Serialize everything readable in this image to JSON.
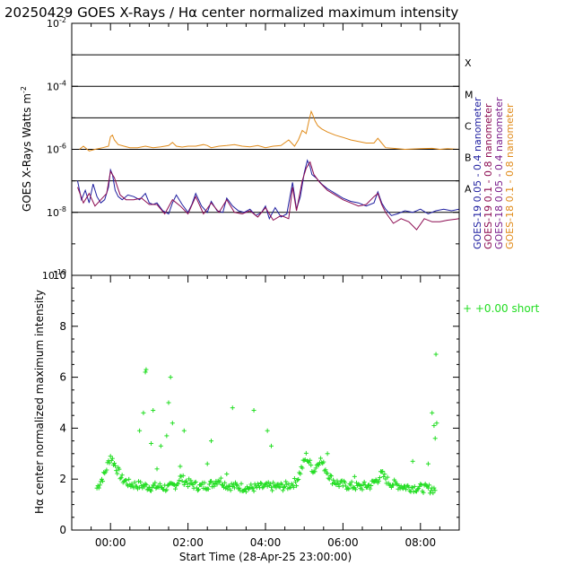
{
  "figure_title": "20250429 GOES X-Rays / Hα center normalized maximum intensity",
  "x_axis_label": "Start Time (28-Apr-25 23:00:00)",
  "colors": {
    "goes19_short": "#1e1ea0",
    "goes19_long": "#8b0a50",
    "goes18_short": "#7a1e8c",
    "goes18_long": "#e08a18",
    "halpha": "#22dd22",
    "frame": "#000000"
  },
  "chart_data": [
    {
      "type": "line",
      "title": "GOES X-Rays",
      "ylabel": "GOES X-Rays Watts m",
      "ylabel_sup": "-2",
      "yscale": "log",
      "ylim_exp": [
        -10,
        -2
      ],
      "xlim_hours": [
        -1.0,
        9.0
      ],
      "y_ticks": [
        {
          "exp": -2,
          "base": "10",
          "sup": "-2"
        },
        {
          "exp": -4,
          "base": "10",
          "sup": "-4"
        },
        {
          "exp": -6,
          "base": "10",
          "sup": "-6"
        },
        {
          "exp": -8,
          "base": "10",
          "sup": "-8"
        },
        {
          "exp": -10,
          "base": "10",
          "sup": "-10"
        }
      ],
      "flare_class_lines": [
        {
          "label": "X",
          "exp": -3
        },
        {
          "label": "M",
          "exp": -4
        },
        {
          "label": "C",
          "exp": -5
        },
        {
          "label": "B",
          "exp": -6
        },
        {
          "label": "A",
          "exp": -7
        },
        {
          "label": "",
          "exp": -8
        }
      ],
      "legend": [
        {
          "text": "GOES-19 0.05 - 0.4 nanometer",
          "color_key": "goes19_short"
        },
        {
          "text": "GOES-19 0.1 - 0.8 nanometer",
          "color_key": "goes19_long"
        },
        {
          "text": "GOES-18 0.05 - 0.4 nanometer",
          "color_key": "goes18_short"
        },
        {
          "text": "GOES-18 0.1 - 0.8 nanometer",
          "color_key": "goes18_long"
        }
      ],
      "series": [
        {
          "name": "GOES-18 0.1 - 0.8 nanometer",
          "color_key": "goes18_long",
          "x": [
            -0.8,
            -0.7,
            -0.55,
            -0.4,
            -0.2,
            -0.05,
            0.0,
            0.05,
            0.1,
            0.2,
            0.35,
            0.5,
            0.7,
            0.9,
            1.1,
            1.3,
            1.5,
            1.6,
            1.7,
            1.85,
            2.0,
            2.2,
            2.4,
            2.5,
            2.6,
            2.8,
            3.0,
            3.2,
            3.4,
            3.6,
            3.8,
            4.0,
            4.2,
            4.4,
            4.6,
            4.75,
            4.85,
            4.95,
            5.05,
            5.12,
            5.18,
            5.22,
            5.28,
            5.35,
            5.45,
            5.6,
            5.8,
            6.0,
            6.2,
            6.4,
            6.6,
            6.8,
            6.9,
            7.0,
            7.1,
            7.3,
            7.6,
            8.0,
            8.3,
            8.5,
            8.7,
            9.0
          ],
          "values_log": [
            -6.0,
            -5.9,
            -6.05,
            -6.0,
            -5.95,
            -5.9,
            -5.6,
            -5.55,
            -5.7,
            -5.85,
            -5.9,
            -5.95,
            -5.95,
            -5.9,
            -5.95,
            -5.92,
            -5.88,
            -5.78,
            -5.9,
            -5.93,
            -5.9,
            -5.9,
            -5.85,
            -5.88,
            -5.95,
            -5.9,
            -5.88,
            -5.85,
            -5.9,
            -5.92,
            -5.88,
            -5.95,
            -5.9,
            -5.88,
            -5.7,
            -5.9,
            -5.7,
            -5.4,
            -5.5,
            -5.1,
            -4.8,
            -4.9,
            -5.1,
            -5.25,
            -5.35,
            -5.45,
            -5.55,
            -5.62,
            -5.7,
            -5.75,
            -5.8,
            -5.8,
            -5.65,
            -5.8,
            -5.95,
            -5.97,
            -6.0,
            -5.98,
            -5.97,
            -6.0,
            -5.98,
            -6.0
          ]
        },
        {
          "name": "GOES-19 0.05 - 0.4 nanometer",
          "color_key": "goes19_short",
          "x": [
            -0.85,
            -0.75,
            -0.65,
            -0.55,
            -0.45,
            -0.35,
            -0.25,
            -0.15,
            -0.05,
            0.0,
            0.05,
            0.12,
            0.2,
            0.3,
            0.45,
            0.6,
            0.75,
            0.9,
            1.0,
            1.1,
            1.2,
            1.35,
            1.5,
            1.6,
            1.7,
            1.85,
            2.0,
            2.1,
            2.2,
            2.35,
            2.5,
            2.6,
            2.75,
            2.9,
            3.0,
            3.15,
            3.3,
            3.45,
            3.6,
            3.75,
            3.9,
            4.0,
            4.1,
            4.25,
            4.4,
            4.55,
            4.7,
            4.8,
            4.9,
            5.0,
            5.08,
            5.15,
            5.2,
            5.3,
            5.45,
            5.6,
            5.8,
            6.0,
            6.2,
            6.4,
            6.6,
            6.8,
            6.9,
            7.0,
            7.1,
            7.25,
            7.4,
            7.6,
            7.8,
            8.0,
            8.2,
            8.4,
            8.6,
            8.8,
            9.0
          ],
          "values_log": [
            -7.0,
            -7.6,
            -7.3,
            -7.7,
            -7.1,
            -7.5,
            -7.7,
            -7.6,
            -7.2,
            -6.65,
            -6.8,
            -7.3,
            -7.5,
            -7.6,
            -7.45,
            -7.5,
            -7.6,
            -7.4,
            -7.7,
            -7.75,
            -7.7,
            -7.95,
            -8.05,
            -7.7,
            -7.45,
            -7.75,
            -8.0,
            -7.75,
            -7.4,
            -7.8,
            -8.0,
            -7.65,
            -7.95,
            -8.0,
            -7.55,
            -7.8,
            -7.95,
            -8.0,
            -7.9,
            -8.1,
            -8.0,
            -7.8,
            -8.2,
            -7.85,
            -8.15,
            -8.05,
            -7.05,
            -7.9,
            -7.5,
            -6.75,
            -6.35,
            -6.55,
            -6.8,
            -6.9,
            -7.1,
            -7.25,
            -7.4,
            -7.55,
            -7.65,
            -7.7,
            -7.8,
            -7.7,
            -7.35,
            -7.7,
            -7.9,
            -8.1,
            -8.05,
            -7.95,
            -8.0,
            -7.9,
            -8.05,
            -7.95,
            -7.9,
            -7.95,
            -7.9
          ]
        },
        {
          "name": "GOES-19 0.1 - 0.8 nanometer",
          "color_key": "goes19_long",
          "x": [
            -0.85,
            -0.7,
            -0.55,
            -0.4,
            -0.25,
            -0.1,
            0.0,
            0.1,
            0.25,
            0.4,
            0.6,
            0.8,
            1.0,
            1.2,
            1.4,
            1.6,
            1.8,
            2.0,
            2.2,
            2.4,
            2.6,
            2.8,
            3.0,
            3.2,
            3.4,
            3.6,
            3.8,
            4.0,
            4.2,
            4.4,
            4.6,
            4.7,
            4.8,
            4.95,
            5.05,
            5.15,
            5.25,
            5.4,
            5.6,
            5.8,
            6.0,
            6.2,
            6.4,
            6.6,
            6.8,
            6.9,
            7.0,
            7.1,
            7.3,
            7.5,
            7.7,
            7.9,
            8.1,
            8.3,
            8.5,
            8.7,
            9.0
          ],
          "values_log": [
            -7.2,
            -7.7,
            -7.4,
            -7.8,
            -7.6,
            -7.4,
            -6.7,
            -6.9,
            -7.45,
            -7.6,
            -7.6,
            -7.55,
            -7.75,
            -7.75,
            -8.05,
            -7.6,
            -7.8,
            -8.05,
            -7.5,
            -8.05,
            -7.7,
            -8.0,
            -7.6,
            -8.0,
            -8.05,
            -7.95,
            -8.15,
            -7.85,
            -8.25,
            -8.1,
            -8.2,
            -7.2,
            -7.95,
            -7.0,
            -6.6,
            -6.4,
            -6.8,
            -7.05,
            -7.3,
            -7.45,
            -7.6,
            -7.7,
            -7.8,
            -7.75,
            -7.5,
            -7.4,
            -7.75,
            -8.0,
            -8.35,
            -8.2,
            -8.3,
            -8.55,
            -8.2,
            -8.3,
            -8.3,
            -8.25,
            -8.2
          ]
        }
      ]
    },
    {
      "type": "scatter",
      "title": "Hα center normalized maximum intensity",
      "ylabel": "Hα center normalized maximum intensity",
      "ylim": [
        0,
        10
      ],
      "xlim_hours": [
        -1.0,
        9.0
      ],
      "y_ticks": [
        0,
        2,
        4,
        6,
        8,
        10
      ],
      "x_ticks": [
        {
          "hour": 0,
          "label": "00:00"
        },
        {
          "hour": 2,
          "label": "02:00"
        },
        {
          "hour": 4,
          "label": "04:00"
        },
        {
          "hour": 6,
          "label": "06:00"
        },
        {
          "hour": 8,
          "label": "08:00"
        }
      ],
      "legend": [
        {
          "marker": "+",
          "text": "+0.00 short"
        }
      ],
      "baseline_knots_x": [
        -0.35,
        -0.15,
        0.0,
        0.1,
        0.3,
        0.5,
        0.8,
        1.0,
        1.3,
        1.5,
        1.7,
        1.8,
        2.0,
        2.3,
        2.6,
        2.8,
        3.0,
        3.3,
        3.6,
        4.0,
        4.4,
        4.6,
        4.8,
        4.95,
        5.05,
        5.15,
        5.25,
        5.4,
        5.55,
        5.7,
        5.9,
        6.1,
        6.4,
        6.7,
        6.9,
        7.0,
        7.2,
        7.6,
        8.0,
        8.4
      ],
      "baseline_knots_y": [
        1.65,
        2.2,
        2.9,
        2.6,
        2.0,
        1.8,
        1.75,
        1.7,
        1.7,
        1.65,
        1.8,
        2.05,
        1.85,
        1.7,
        1.8,
        2.0,
        1.75,
        1.7,
        1.65,
        1.7,
        1.7,
        1.75,
        1.9,
        2.5,
        2.9,
        2.6,
        2.3,
        2.8,
        2.4,
        2.0,
        1.8,
        1.75,
        1.7,
        1.75,
        2.0,
        2.2,
        1.85,
        1.7,
        1.65,
        1.6
      ],
      "outliers": [
        {
          "x": 0.9,
          "y": 6.2
        },
        {
          "x": 0.92,
          "y": 6.3
        },
        {
          "x": 1.55,
          "y": 6.0
        },
        {
          "x": 0.85,
          "y": 4.6
        },
        {
          "x": 1.1,
          "y": 4.7
        },
        {
          "x": 1.5,
          "y": 5.0
        },
        {
          "x": 1.6,
          "y": 4.2
        },
        {
          "x": 0.75,
          "y": 3.9
        },
        {
          "x": 1.05,
          "y": 3.4
        },
        {
          "x": 1.3,
          "y": 3.3
        },
        {
          "x": 1.45,
          "y": 3.7
        },
        {
          "x": 1.9,
          "y": 3.9
        },
        {
          "x": 2.6,
          "y": 3.5
        },
        {
          "x": 3.15,
          "y": 4.8
        },
        {
          "x": 3.7,
          "y": 4.7
        },
        {
          "x": 4.05,
          "y": 3.9
        },
        {
          "x": 4.15,
          "y": 3.3
        },
        {
          "x": 2.5,
          "y": 2.6
        },
        {
          "x": 3.0,
          "y": 2.2
        },
        {
          "x": 1.8,
          "y": 2.5
        },
        {
          "x": 1.2,
          "y": 2.4
        },
        {
          "x": 8.3,
          "y": 4.6
        },
        {
          "x": 8.35,
          "y": 4.1
        },
        {
          "x": 8.4,
          "y": 6.9
        },
        {
          "x": 8.42,
          "y": 4.2
        },
        {
          "x": 8.38,
          "y": 3.6
        },
        {
          "x": 8.2,
          "y": 2.6
        },
        {
          "x": 7.8,
          "y": 2.7
        },
        {
          "x": 6.3,
          "y": 2.1
        },
        {
          "x": 5.6,
          "y": 3.0
        }
      ]
    }
  ]
}
